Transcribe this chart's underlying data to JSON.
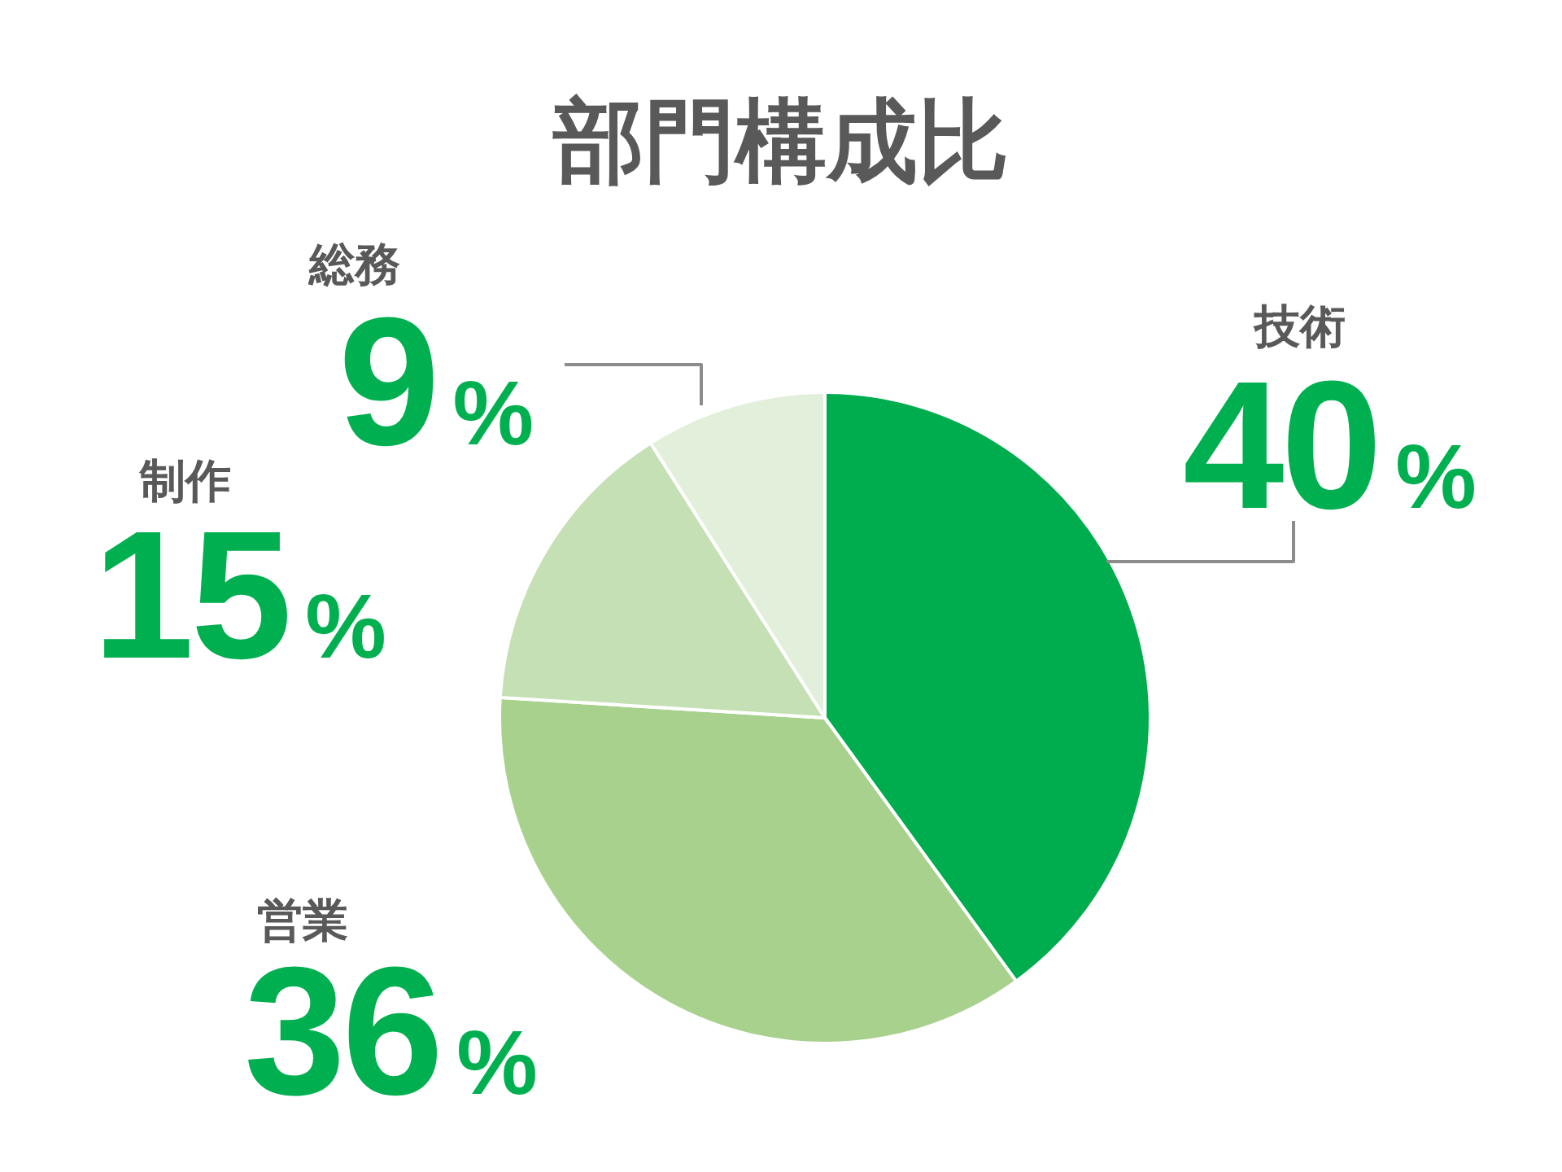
{
  "chart_data": {
    "type": "pie",
    "title": "部門構成比",
    "categories": [
      "技術",
      "営業",
      "制作",
      "総務"
    ],
    "values": [
      40,
      36,
      15,
      9
    ],
    "colors": [
      "#00ad4e",
      "#a9d18e",
      "#c5e0b4",
      "#e2efda"
    ],
    "value_labels": [
      "40%",
      "36%",
      "15%",
      "9%"
    ]
  }
}
